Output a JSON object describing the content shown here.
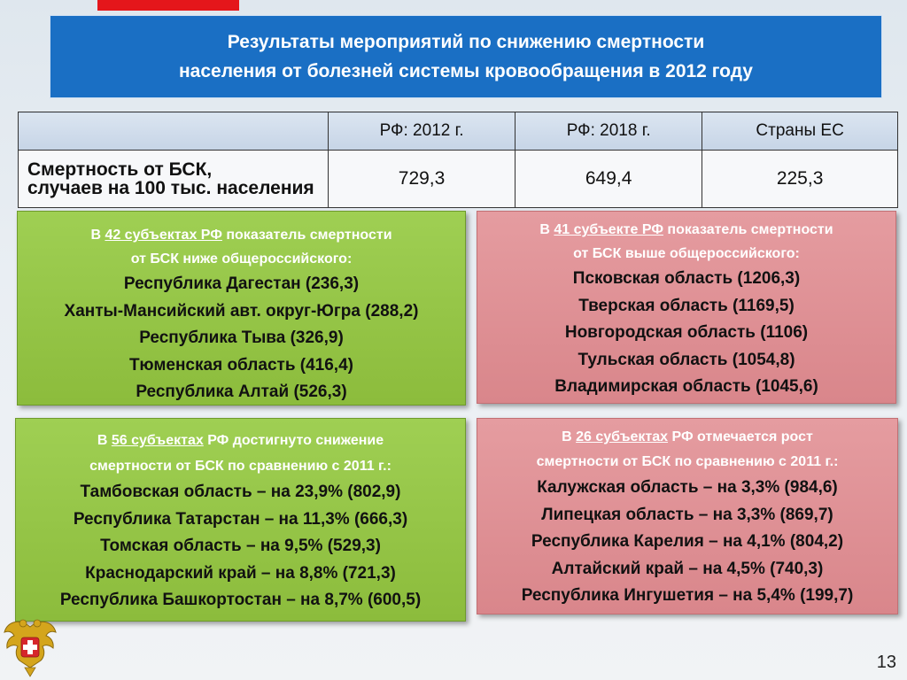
{
  "title": {
    "line1": "Результаты мероприятий по снижению смертности",
    "line2": "населения от болезней системы кровообращения в 2012 году"
  },
  "table": {
    "headers": [
      "РФ:   2012 г.",
      "РФ:   2018 г.",
      "Страны ЕС"
    ],
    "row_label_line1": "Смертность от БСК,",
    "row_label_line2": "случаев на 100 тыс. населения",
    "values": [
      "729,3",
      "649,4",
      "225,3"
    ]
  },
  "panel_lower": {
    "intro_pre": "В ",
    "intro_link": "42 субъектах РФ",
    "intro_post": " показатель смертности",
    "intro_line2": "от БСК ниже общероссийского:",
    "items": [
      "Республика Дагестан (236,3)",
      "Ханты-Мансийский авт. округ-Югра  (288,2)",
      "Республика Тыва (326,9)",
      "Тюменская область (416,4)",
      "Республика Алтай (526,3)"
    ]
  },
  "panel_higher": {
    "intro_pre": "В ",
    "intro_link": "41 субъекте РФ",
    "intro_post": " показатель смертности",
    "intro_line2": "от БСК выше общероссийского:",
    "items": [
      "Псковская область (1206,3)",
      "Тверская область (1169,5)",
      "Новгородская область (1106)",
      "Тульская область (1054,8)",
      "Владимирская область (1045,6)"
    ]
  },
  "panel_decrease": {
    "intro_pre": "В ",
    "intro_link": "56 субъектах",
    "intro_post": " РФ достигнуто снижение",
    "intro_line2": "смертности от  БСК по сравнению с 2011 г.:",
    "items": [
      "Тамбовская область – на 23,9% (802,9)",
      "Республика Татарстан – на 11,3% (666,3)",
      "Томская область – на 9,5% (529,3)",
      "Краснодарский край – на 8,8% (721,3)",
      "Республика Башкортостан – на 8,7% (600,5)"
    ]
  },
  "panel_increase": {
    "intro_pre": "В ",
    "intro_link": "26 субъектах",
    "intro_post": " РФ отмечается рост",
    "intro_line2": "смертности от  БСК по сравнению с 2011 г.:",
    "items": [
      "Калужская область – на 3,3% (984,6)",
      "Липецкая область – на 3,3% (869,7)",
      "Республика Карелия – на 4,1% (804,2)",
      "Алтайский край – на 4,5% (740,3)",
      "Республика Ингушетия – на 5,4% (199,7)"
    ]
  },
  "colors": {
    "title_bg": "#1a6fc4",
    "accent_red": "#e4161b",
    "green_panel": "#9fcf53",
    "pink_panel": "#e59ca0"
  },
  "emblem_icon": "coat-of-arms-icon",
  "page_number": "13"
}
